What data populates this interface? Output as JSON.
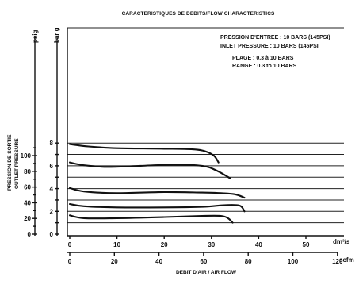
{
  "chart_data": {
    "type": "line",
    "title": "CARACTERISTIQUES DE DEBITS/FLOW CHARACTERISTICS",
    "notes": [
      "PRESSION D'ENTREE : 10 BARS (145PSI)",
      "INLET PRESSURE : 10 BARS (145PSI",
      "PLAGE : 0.3 à 10 BARS",
      "RANGE : 0.3 to 10 BARS"
    ],
    "ylabel": "PRESSION DE SORTIE OUTLET PRESSURE",
    "ylabel_lines": [
      "PRESSION DE SORTIE",
      "OUTLET PRESSURE"
    ],
    "xlabel": "DEBIT D'AIR / AIR FLOW",
    "y_units": {
      "psig": "psig",
      "barg": "bar g"
    },
    "x_units": {
      "metric": "dm³/s",
      "imperial": "scfm"
    },
    "ylim_barg": [
      0,
      8.5
    ],
    "xlim_dm3s": [
      0,
      58
    ],
    "psig_ticks": [
      {
        "label": "0",
        "value": 0
      },
      {
        "label": "20",
        "value": 20
      },
      {
        "label": "40",
        "value": 40
      },
      {
        "label": "60",
        "value": 60
      },
      {
        "label": "80",
        "value": 80
      },
      {
        "label": "100",
        "value": 100
      }
    ],
    "barg_ticks": [
      {
        "label": "0",
        "value": 0
      },
      {
        "label": "2",
        "value": 2
      },
      {
        "label": "4",
        "value": 4
      },
      {
        "label": "6",
        "value": 6
      },
      {
        "label": "8",
        "value": 8
      }
    ],
    "dm3s_ticks": [
      {
        "label": "0",
        "value": 0
      },
      {
        "label": "10",
        "value": 10
      },
      {
        "label": "20",
        "value": 20
      },
      {
        "label": "30",
        "value": 30
      },
      {
        "label": "40",
        "value": 40
      },
      {
        "label": "50",
        "value": 50
      }
    ],
    "scfm_ticks": [
      {
        "label": "0",
        "value": 0
      },
      {
        "label": "20",
        "value": 20
      },
      {
        "label": "40",
        "value": 40
      },
      {
        "label": "60",
        "value": 60
      },
      {
        "label": "80",
        "value": 80
      },
      {
        "label": "100",
        "value": 100
      },
      {
        "label": "120",
        "value": 120
      }
    ],
    "grid": true,
    "series": [
      {
        "x": [
          0,
          4,
          10,
          20,
          26,
          28.5,
          30.5,
          31.5
        ],
        "y": [
          7.9,
          7.7,
          7.55,
          7.5,
          7.45,
          7.3,
          6.9,
          6.3
        ]
      },
      {
        "x": [
          0,
          3,
          8,
          15,
          22,
          28,
          31,
          34
        ],
        "y": [
          6.3,
          6.05,
          5.9,
          6.0,
          6.1,
          6.0,
          5.6,
          4.9
        ]
      },
      {
        "x": [
          0,
          3,
          10,
          20,
          28,
          32,
          35,
          37
        ],
        "y": [
          4.05,
          3.75,
          3.6,
          3.7,
          3.65,
          3.6,
          3.5,
          3.2
        ]
      },
      {
        "x": [
          0,
          3,
          10,
          20,
          28,
          33,
          36,
          37
        ],
        "y": [
          2.65,
          2.45,
          2.35,
          2.35,
          2.4,
          2.55,
          2.5,
          2.0
        ]
      },
      {
        "x": [
          0,
          3,
          10,
          20,
          28,
          32,
          33.5,
          34.5
        ],
        "y": [
          1.65,
          1.4,
          1.4,
          1.5,
          1.6,
          1.6,
          1.4,
          1.0
        ]
      }
    ]
  }
}
